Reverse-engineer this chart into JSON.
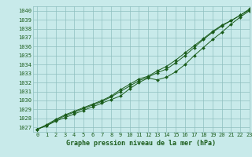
{
  "title": "Graphe pression niveau de la mer (hPa)",
  "bg_color": "#c8eaea",
  "grid_color": "#8fbfbf",
  "line_color": "#1a5c1a",
  "xlim": [
    -0.5,
    23
  ],
  "ylim": [
    1026.5,
    1040.5
  ],
  "yticks": [
    1027,
    1028,
    1029,
    1030,
    1031,
    1032,
    1033,
    1034,
    1035,
    1036,
    1037,
    1038,
    1039,
    1040
  ],
  "xticks": [
    0,
    1,
    2,
    3,
    4,
    5,
    6,
    7,
    8,
    9,
    10,
    11,
    12,
    13,
    14,
    15,
    16,
    17,
    18,
    19,
    20,
    21,
    22,
    23
  ],
  "series1_x": [
    0,
    1,
    2,
    3,
    4,
    5,
    6,
    7,
    8,
    9,
    10,
    11,
    12,
    13,
    14,
    15,
    16,
    17,
    18,
    19,
    20,
    21,
    22,
    23
  ],
  "series1_y": [
    1026.8,
    1027.2,
    1027.7,
    1028.1,
    1028.5,
    1028.9,
    1029.3,
    1029.7,
    1030.1,
    1030.5,
    1031.3,
    1032.0,
    1032.5,
    1032.3,
    1032.6,
    1033.2,
    1034.0,
    1035.0,
    1035.9,
    1036.8,
    1037.6,
    1038.5,
    1039.3,
    1040.0
  ],
  "series2_x": [
    0,
    1,
    2,
    3,
    4,
    5,
    6,
    7,
    8,
    9,
    10,
    11,
    12,
    13,
    14,
    15,
    16,
    17,
    18,
    19,
    20,
    21,
    22,
    23
  ],
  "series2_y": [
    1026.8,
    1027.2,
    1027.8,
    1028.3,
    1028.7,
    1029.1,
    1029.5,
    1029.9,
    1030.4,
    1031.0,
    1031.6,
    1032.2,
    1032.6,
    1033.1,
    1033.5,
    1034.2,
    1035.0,
    1035.9,
    1036.8,
    1037.6,
    1038.3,
    1038.9,
    1039.5,
    1040.1
  ],
  "series3_x": [
    0,
    1,
    2,
    3,
    4,
    5,
    6,
    7,
    8,
    9,
    10,
    11,
    12,
    13,
    14,
    15,
    16,
    17,
    18,
    19,
    20,
    21,
    22,
    23
  ],
  "series3_y": [
    1026.8,
    1027.3,
    1027.9,
    1028.4,
    1028.8,
    1029.2,
    1029.6,
    1030.0,
    1030.5,
    1031.2,
    1031.8,
    1032.4,
    1032.7,
    1033.3,
    1033.8,
    1034.5,
    1035.3,
    1036.1,
    1036.9,
    1037.7,
    1038.4,
    1038.9,
    1039.5,
    1040.2
  ]
}
